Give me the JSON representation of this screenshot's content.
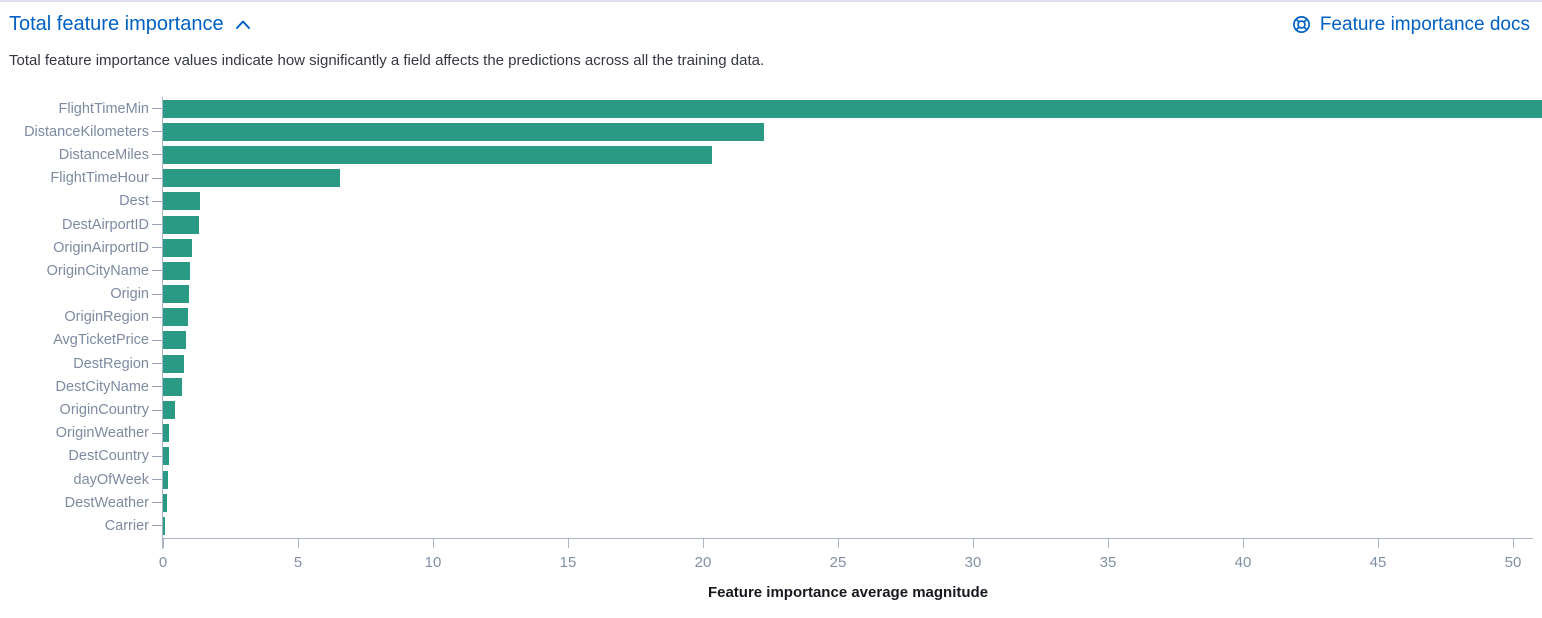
{
  "header": {
    "title": "Total feature importance",
    "docs_link_label": "Feature importance docs",
    "description": "Total feature importance values indicate how significantly a field affects the predictions across all the training data."
  },
  "icons": {
    "chevron": "chevron-up-icon",
    "help": "help-icon"
  },
  "colors": {
    "link_blue": "#0061c2",
    "bar_teal": "#2a9a84",
    "axis_line": "#a9b4c6",
    "tick_label": "#8290a5",
    "y_label": "#7d8aa0",
    "body_text": "#343741",
    "axis_title": "#16191f",
    "top_border": "#dce0ec"
  },
  "chart_data": {
    "type": "bar",
    "orientation": "horizontal",
    "title": "",
    "xlabel": "Feature importance average magnitude",
    "ylabel": "",
    "categories": [
      "FlightTimeMin",
      "DistanceKilometers",
      "DistanceMiles",
      "FlightTimeHour",
      "Dest",
      "DestAirportID",
      "OriginAirportID",
      "OriginCityName",
      "Origin",
      "OriginRegion",
      "AvgTicketPrice",
      "DestRegion",
      "DestCityName",
      "OriginCountry",
      "OriginWeather",
      "DestCountry",
      "dayOfWeek",
      "DestWeather",
      "Carrier"
    ],
    "values": [
      50.74,
      22.1,
      20.2,
      6.5,
      1.36,
      1.32,
      1.08,
      0.98,
      0.96,
      0.92,
      0.86,
      0.78,
      0.7,
      0.43,
      0.23,
      0.21,
      0.2,
      0.16,
      0.07
    ],
    "x_ticks": [
      0,
      5,
      10,
      15,
      20,
      25,
      30,
      35,
      40,
      45,
      50
    ],
    "xlim": [
      0,
      50.74
    ],
    "grid": false,
    "legend_position": "none",
    "bar_color": "#2a9a84"
  }
}
